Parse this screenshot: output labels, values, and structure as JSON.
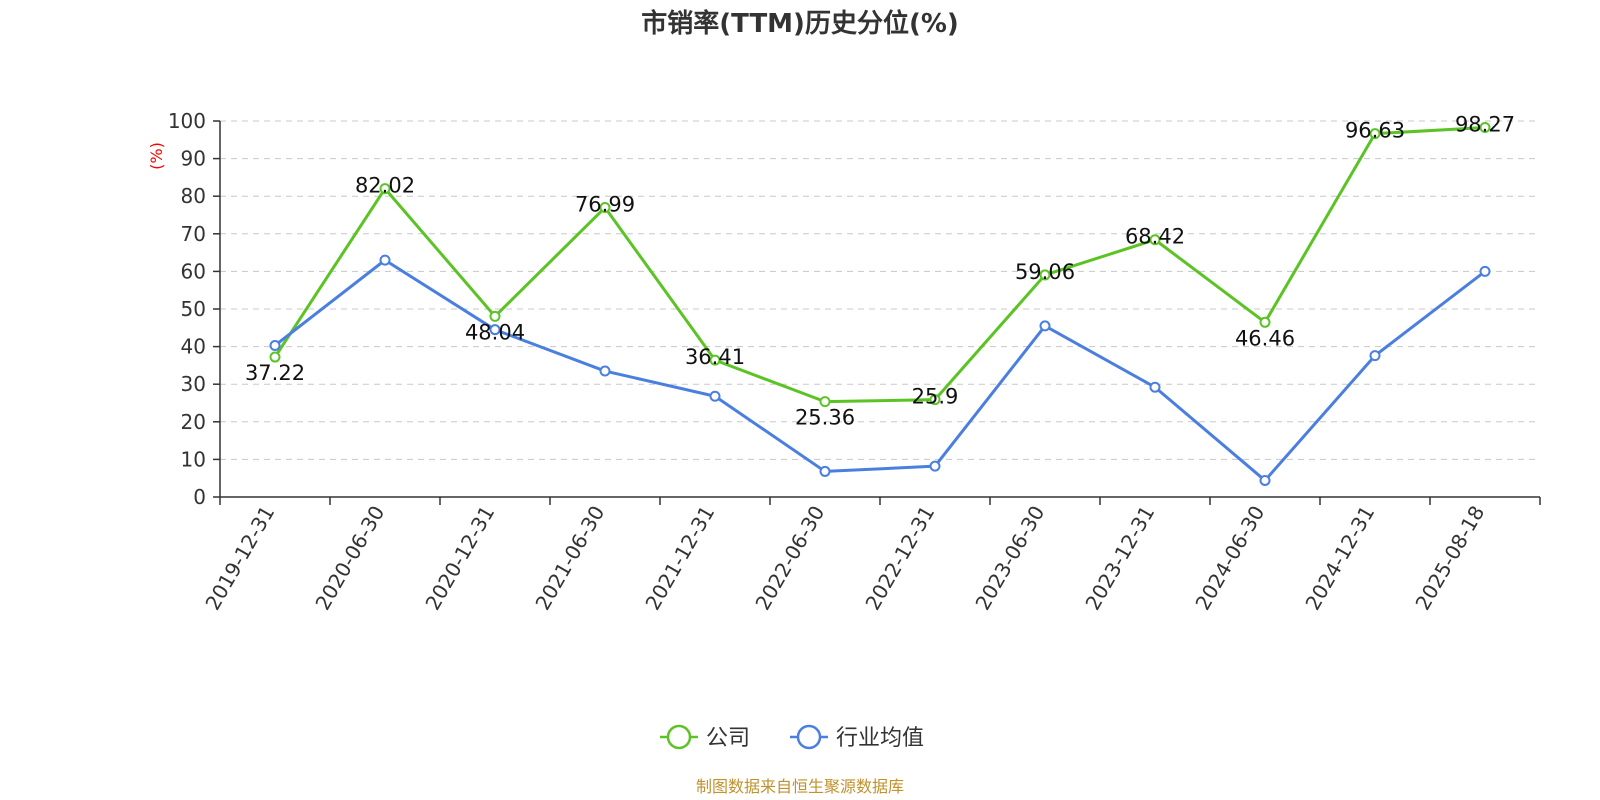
{
  "chart_data": {
    "type": "line",
    "title": "市销率(TTM)历史分位(%)",
    "ylabel": "(%)",
    "xlabel": "",
    "ylim": [
      0,
      100
    ],
    "yticks": [
      0,
      10,
      20,
      30,
      40,
      50,
      60,
      70,
      80,
      90,
      100
    ],
    "grid": true,
    "legend_position": "bottom-center",
    "categories": [
      "2019-12-31",
      "2020-06-30",
      "2020-12-31",
      "2021-06-30",
      "2021-12-31",
      "2022-06-30",
      "2022-12-31",
      "2023-06-30",
      "2023-12-31",
      "2024-06-30",
      "2024-12-31",
      "2025-08-18"
    ],
    "series": [
      {
        "name": "公司",
        "color": "#5cc325",
        "values": [
          37.22,
          82.02,
          48.04,
          76.99,
          36.41,
          25.36,
          25.9,
          59.06,
          68.42,
          46.46,
          96.63,
          98.27
        ],
        "labels": [
          "37.22",
          "82.02",
          "48.04",
          "76.99",
          "36.41",
          "25.36",
          "25.9",
          "59.06",
          "68.42",
          "46.46",
          "96.63",
          "98.27"
        ]
      },
      {
        "name": "行业均值",
        "color": "#4a7fe0",
        "values": [
          40.3,
          63.0,
          44.5,
          33.5,
          26.8,
          6.8,
          8.2,
          45.5,
          29.2,
          4.4,
          37.6,
          60.0
        ]
      }
    ]
  },
  "source": "制图数据来自恒生聚源数据库"
}
